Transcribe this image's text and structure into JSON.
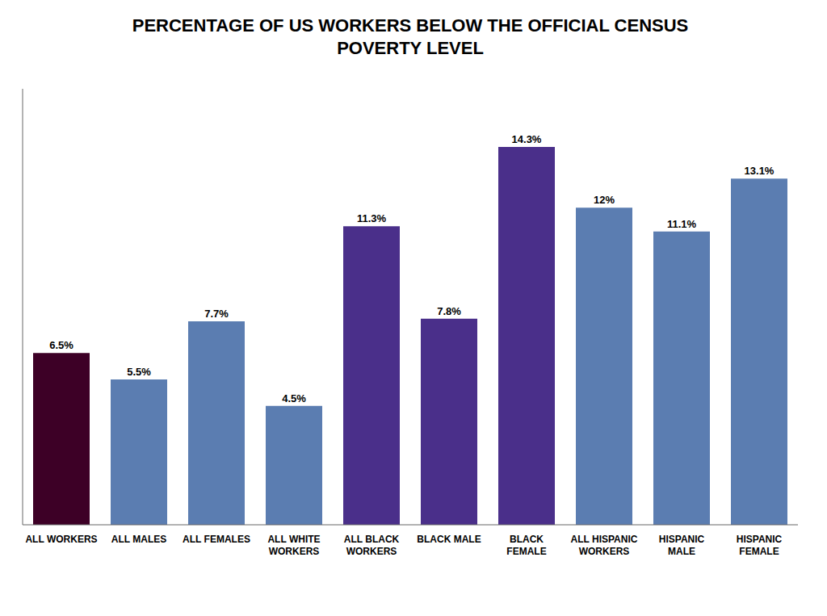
{
  "chart_data": {
    "type": "bar",
    "title": "PERCENTAGE OF US WORKERS BELOW THE OFFICIAL CENSUS\nPOVERTY LEVEL",
    "categories": [
      "ALL WORKERS",
      "ALL MALES",
      "ALL FEMALES",
      "ALL WHITE\nWORKERS",
      "ALL BLACK\nWORKERS",
      "BLACK MALE",
      "BLACK\nFEMALE",
      "ALL HISPANIC\nWORKERS",
      "HISPANIC\nMALE",
      "HISPANIC\nFEMALE"
    ],
    "values": [
      6.5,
      5.5,
      7.7,
      4.5,
      11.3,
      7.8,
      14.3,
      12.0,
      11.1,
      13.1
    ],
    "value_labels": [
      "6.5%",
      "5.5%",
      "7.7%",
      "4.5%",
      "11.3%",
      "7.8%",
      "14.3%",
      "12%",
      "11.1%",
      "13.1%"
    ],
    "colors": [
      "#3D0026",
      "#5B7DB1",
      "#5B7DB1",
      "#5B7DB1",
      "#4A2F8A",
      "#4A2F8A",
      "#4A2F8A",
      "#5B7DB1",
      "#5B7DB1",
      "#5B7DB1"
    ],
    "ylim": [
      0,
      16.5
    ],
    "yticks": [],
    "grid": false,
    "data_labels": true,
    "tick_labels": "x"
  }
}
